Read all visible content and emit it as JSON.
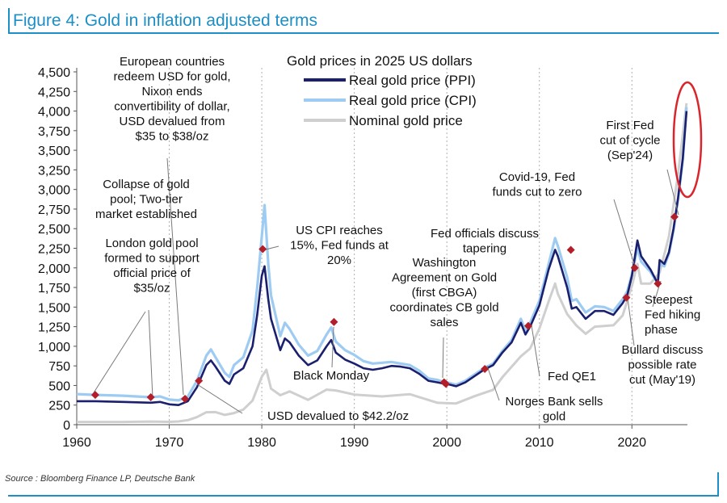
{
  "figure_title": "Figure 4: Gold in inflation adjusted terms",
  "source": "Source : Bloomberg Finance LP, Deutsche Bank",
  "colors": {
    "frame": "#1c8fc6",
    "ppi": "#1a1f6e",
    "cpi": "#9ecbf2",
    "nominal": "#cfcfcf",
    "marker": "#b21e2a",
    "highlight": "#d9252b"
  },
  "chart_data": {
    "type": "line",
    "title": "Gold prices in 2025 US dollars",
    "xlim": [
      1960,
      2026
    ],
    "ylim": [
      0,
      4500
    ],
    "x_ticks": [
      1960,
      1970,
      1980,
      1990,
      2000,
      2010,
      2020
    ],
    "y_ticks": [
      0,
      250,
      500,
      750,
      1000,
      1250,
      1500,
      1750,
      2000,
      2250,
      2500,
      2750,
      3000,
      3250,
      3500,
      3750,
      4000,
      4250,
      4500
    ],
    "y_tick_labels": [
      "0",
      "250",
      "500",
      "750",
      "1,000",
      "1,250",
      "1,500",
      "1,750",
      "2,000",
      "2,250",
      "2,500",
      "2,750",
      "3,000",
      "3,250",
      "3,500",
      "3,750",
      "4,000",
      "4,250",
      "4,500"
    ],
    "legend_position": "top-center",
    "grid": false,
    "series": [
      {
        "name": "Real gold price (PPI)",
        "x": [
          1960,
          1962,
          1965,
          1968,
          1969,
          1970,
          1971,
          1972,
          1973,
          1974,
          1974.5,
          1975,
          1976,
          1976.5,
          1977,
          1978,
          1979,
          1979.5,
          1980,
          1980.3,
          1980.7,
          1981,
          1982,
          1982.5,
          1983,
          1984,
          1985,
          1986,
          1987,
          1987.5,
          1988,
          1989,
          1990,
          1991,
          1992,
          1993,
          1994,
          1995,
          1996,
          1997,
          1998,
          1999,
          1999.8,
          2000,
          2001,
          2002,
          2003,
          2004,
          2005,
          2006,
          2007,
          2008,
          2008.5,
          2009,
          2010,
          2011,
          2011.7,
          2012,
          2013,
          2013.5,
          2014,
          2015,
          2016,
          2017,
          2018,
          2019,
          2019.5,
          2020,
          2020.6,
          2021,
          2022,
          2022.8,
          2023,
          2023.5,
          2024,
          2024.5,
          2025,
          2025.5,
          2025.9
        ],
        "values": [
          300,
          300,
          290,
          280,
          290,
          260,
          250,
          300,
          480,
          760,
          820,
          740,
          560,
          520,
          640,
          720,
          1000,
          1400,
          1900,
          2020,
          1600,
          1350,
          950,
          1100,
          1050,
          880,
          760,
          820,
          1000,
          1080,
          920,
          830,
          780,
          720,
          700,
          720,
          750,
          740,
          720,
          650,
          560,
          540,
          520,
          520,
          490,
          540,
          620,
          700,
          760,
          920,
          1050,
          1300,
          1150,
          1250,
          1520,
          1980,
          2230,
          2150,
          1750,
          1480,
          1500,
          1350,
          1450,
          1450,
          1400,
          1550,
          1650,
          1900,
          2350,
          2150,
          1980,
          1800,
          2100,
          2050,
          2200,
          2500,
          2900,
          3400,
          4000
        ]
      },
      {
        "name": "Real gold price (CPI)",
        "x": [
          1960,
          1962,
          1965,
          1968,
          1969,
          1970,
          1971,
          1972,
          1973,
          1974,
          1974.5,
          1975,
          1976,
          1976.5,
          1977,
          1978,
          1979,
          1979.5,
          1980,
          1980.3,
          1980.7,
          1981,
          1982,
          1982.5,
          1983,
          1984,
          1985,
          1986,
          1987,
          1987.5,
          1988,
          1989,
          1990,
          1991,
          1992,
          1993,
          1994,
          1995,
          1996,
          1997,
          1998,
          1999,
          1999.8,
          2000,
          2001,
          2002,
          2003,
          2004,
          2005,
          2006,
          2007,
          2008,
          2008.5,
          2009,
          2010,
          2011,
          2011.7,
          2012,
          2013,
          2013.5,
          2014,
          2015,
          2016,
          2017,
          2018,
          2019,
          2019.5,
          2020,
          2020.6,
          2021,
          2022,
          2022.8,
          2023,
          2023.5,
          2024,
          2024.5,
          2025,
          2025.5,
          2025.9
        ],
        "values": [
          390,
          380,
          370,
          350,
          360,
          320,
          310,
          360,
          560,
          880,
          960,
          860,
          660,
          610,
          760,
          860,
          1200,
          1750,
          2400,
          2800,
          2050,
          1650,
          1130,
          1300,
          1220,
          1020,
          880,
          940,
          1150,
          1240,
          1060,
          950,
          890,
          810,
          780,
          790,
          800,
          780,
          760,
          690,
          590,
          570,
          540,
          540,
          510,
          560,
          640,
          720,
          780,
          940,
          1080,
          1350,
          1200,
          1300,
          1580,
          2050,
          2380,
          2280,
          1880,
          1580,
          1600,
          1430,
          1510,
          1500,
          1450,
          1600,
          1700,
          1920,
          2250,
          2080,
          1950,
          1800,
          2050,
          2020,
          2180,
          2480,
          2880,
          3380,
          4050
        ]
      },
      {
        "name": "Nominal gold price",
        "x": [
          1960,
          1965,
          1968,
          1970,
          1971,
          1972,
          1973,
          1974,
          1975,
          1976,
          1977,
          1978,
          1979,
          1980,
          1980.5,
          1981,
          1982,
          1983,
          1985,
          1987,
          1988,
          1990,
          1993,
          1996,
          1999,
          2001,
          2003,
          2005,
          2006,
          2008,
          2009,
          2010,
          2011,
          2011.7,
          2012,
          2013,
          2014,
          2015,
          2016,
          2018,
          2019,
          2020,
          2020.6,
          2021,
          2022,
          2023,
          2024,
          2025,
          2025.9
        ],
        "values": [
          35,
          35,
          40,
          36,
          41,
          58,
          97,
          159,
          161,
          125,
          148,
          193,
          307,
          612,
          700,
          460,
          376,
          424,
          317,
          447,
          437,
          384,
          360,
          388,
          279,
          271,
          363,
          445,
          604,
          872,
          972,
          1225,
          1572,
          1800,
          1669,
          1411,
          1266,
          1160,
          1250,
          1268,
          1393,
          1770,
          2050,
          1800,
          1800,
          1940,
          2400,
          3200,
          4100
        ]
      }
    ],
    "events": [
      {
        "x": 1962,
        "y": 380
      },
      {
        "x": 1968,
        "y": 350
      },
      {
        "x": 1971.7,
        "y": 330
      },
      {
        "x": 1973.2,
        "y": 560
      },
      {
        "x": 1980.1,
        "y": 2240
      },
      {
        "x": 1987.8,
        "y": 1310
      },
      {
        "x": 1999.7,
        "y": 540
      },
      {
        "x": 1999.9,
        "y": 520
      },
      {
        "x": 2004.1,
        "y": 710
      },
      {
        "x": 2008.8,
        "y": 1260
      },
      {
        "x": 2013.4,
        "y": 2230
      },
      {
        "x": 2019.4,
        "y": 1620
      },
      {
        "x": 2020.3,
        "y": 2000
      },
      {
        "x": 2022.8,
        "y": 1800
      },
      {
        "x": 2024.6,
        "y": 2650
      }
    ],
    "annotations": [
      {
        "id": "europe",
        "lines": [
          "European countries",
          "redeem USD for gold,",
          "Nixon ends",
          "convertibility of dollar,",
          "USD devalued from",
          "$35 to $38/oz"
        ]
      },
      {
        "id": "collapse",
        "lines": [
          "Collapse of gold",
          "pool; Two-tier",
          "market established"
        ]
      },
      {
        "id": "london",
        "lines": [
          "London gold pool",
          "formed to support",
          "official price of",
          "$35/oz"
        ]
      },
      {
        "id": "cpi15",
        "lines": [
          "US CPI reaches",
          "15%, Fed funds at",
          "20%"
        ]
      },
      {
        "id": "usd422",
        "lines": [
          "USD devalued to $42.2/oz"
        ]
      },
      {
        "id": "blackmonday",
        "lines": [
          "Black Monday"
        ]
      },
      {
        "id": "washington",
        "lines": [
          "Washington",
          "Agreement on Gold",
          "(first CBGA)",
          "coordinates CB gold",
          "sales"
        ]
      },
      {
        "id": "tapering",
        "lines": [
          "Fed officials discuss",
          "tapering"
        ]
      },
      {
        "id": "covid",
        "lines": [
          "Covid-19, Fed",
          "funds cut to zero"
        ]
      },
      {
        "id": "firstfed",
        "lines": [
          "First Fed",
          "cut of cycle",
          "(Sep'24)"
        ]
      },
      {
        "id": "norges",
        "lines": [
          "Norges Bank sells",
          "gold"
        ]
      },
      {
        "id": "fedqe1",
        "lines": [
          "Fed QE1"
        ]
      },
      {
        "id": "steepest",
        "lines": [
          "Steepest",
          "Fed hiking",
          "phase"
        ]
      },
      {
        "id": "bullard",
        "lines": [
          "Bullard discuss",
          "possible rate",
          "cut (May'19)"
        ]
      }
    ]
  }
}
